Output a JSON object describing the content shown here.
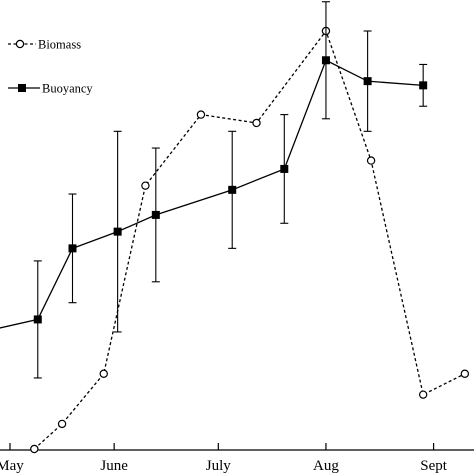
{
  "chart_data": {
    "type": "line",
    "title": "",
    "xlabel": "",
    "ylabel": "",
    "x_ticks": [
      {
        "label": "May",
        "x": 0
      },
      {
        "label": "June",
        "x": 30
      },
      {
        "label": "July",
        "x": 60
      },
      {
        "label": "Aug",
        "x": 91
      },
      {
        "label": "Sept",
        "x": 122
      }
    ],
    "xlim": [
      0,
      122
    ],
    "ylim": [
      0,
      100
    ],
    "grid": false,
    "legend_position": "top-left",
    "series": [
      {
        "name": "Biomass",
        "style": "dashed",
        "marker": "open-circle",
        "color": "#000000",
        "points": [
          {
            "x": 7,
            "y": 0
          },
          {
            "x": 15,
            "y": 6
          },
          {
            "x": 27,
            "y": 18
          },
          {
            "x": 39,
            "y": 63
          },
          {
            "x": 55,
            "y": 80
          },
          {
            "x": 71,
            "y": 78
          },
          {
            "x": 91,
            "y": 100
          },
          {
            "x": 104,
            "y": 69
          },
          {
            "x": 119,
            "y": 13
          },
          {
            "x": 131,
            "y": 18
          }
        ]
      },
      {
        "name": "Buoyancy",
        "style": "solid",
        "marker": "filled-square",
        "color": "#000000",
        "points": [
          {
            "x": -8,
            "y": 28,
            "err": null
          },
          {
            "x": 8,
            "y": 31,
            "err": 14
          },
          {
            "x": 18,
            "y": 48,
            "err": 13
          },
          {
            "x": 31,
            "y": 52,
            "err": 24
          },
          {
            "x": 42,
            "y": 56,
            "err": 16
          },
          {
            "x": 64,
            "y": 62,
            "err": 14
          },
          {
            "x": 79,
            "y": 67,
            "err": 13
          },
          {
            "x": 91,
            "y": 93,
            "err": 14
          },
          {
            "x": 103,
            "y": 88,
            "err": 12
          },
          {
            "x": 119,
            "y": 87,
            "err": 5
          }
        ]
      }
    ]
  }
}
